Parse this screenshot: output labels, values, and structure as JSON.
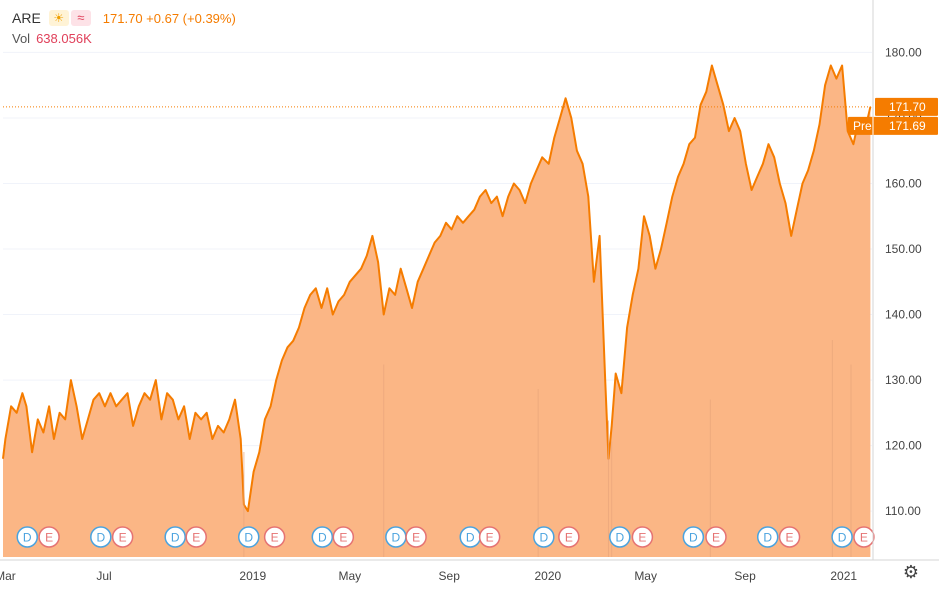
{
  "header": {
    "symbol": "ARE",
    "sun_badge": "☀",
    "wave_badge": "≈",
    "quote": "171.70 +0.67 (+0.39%)",
    "vol_label": "Vol",
    "vol_value": "638.056K"
  },
  "colors": {
    "line": "#f57c00",
    "area": "#fbb27e",
    "volume": "#e8a57a",
    "event_d": "#4aa3df",
    "event_e": "#e57373"
  },
  "settings_icon": "gear-icon",
  "chart_data": {
    "type": "area",
    "ylim": [
      103,
      188
    ],
    "y_ticks": [
      "180.00",
      "170.00",
      "160.00",
      "150.00",
      "140.00",
      "130.00",
      "120.00",
      "110.00"
    ],
    "x_ticks": [
      "Mar",
      "Jul",
      "2019",
      "May",
      "Sep",
      "2020",
      "May",
      "Sep",
      "2021"
    ],
    "last_price": "171.70",
    "pre_label": "Pre",
    "pre_price": "171.69",
    "x_domain": [
      "2018-02-26",
      "2021-02-05"
    ],
    "series": [
      {
        "values": [
          [
            "2018-02-26",
            118
          ],
          [
            "2018-03-01",
            121
          ],
          [
            "2018-03-08",
            126
          ],
          [
            "2018-03-15",
            125
          ],
          [
            "2018-03-22",
            128
          ],
          [
            "2018-03-27",
            126
          ],
          [
            "2018-04-03",
            119
          ],
          [
            "2018-04-10",
            124
          ],
          [
            "2018-04-17",
            122
          ],
          [
            "2018-04-24",
            126
          ],
          [
            "2018-04-30",
            121
          ],
          [
            "2018-05-07",
            125
          ],
          [
            "2018-05-14",
            124
          ],
          [
            "2018-05-21",
            130
          ],
          [
            "2018-05-28",
            126
          ],
          [
            "2018-06-04",
            121
          ],
          [
            "2018-06-11",
            124
          ],
          [
            "2018-06-18",
            127
          ],
          [
            "2018-06-25",
            128
          ],
          [
            "2018-07-02",
            126
          ],
          [
            "2018-07-09",
            128
          ],
          [
            "2018-07-16",
            126
          ],
          [
            "2018-07-23",
            127
          ],
          [
            "2018-07-30",
            128
          ],
          [
            "2018-08-06",
            123
          ],
          [
            "2018-08-13",
            126
          ],
          [
            "2018-08-20",
            128
          ],
          [
            "2018-08-27",
            127
          ],
          [
            "2018-09-03",
            130
          ],
          [
            "2018-09-10",
            124
          ],
          [
            "2018-09-17",
            128
          ],
          [
            "2018-09-24",
            127
          ],
          [
            "2018-10-01",
            124
          ],
          [
            "2018-10-08",
            126
          ],
          [
            "2018-10-15",
            121
          ],
          [
            "2018-10-22",
            125
          ],
          [
            "2018-10-29",
            124
          ],
          [
            "2018-11-05",
            125
          ],
          [
            "2018-11-12",
            121
          ],
          [
            "2018-11-19",
            123
          ],
          [
            "2018-11-26",
            122
          ],
          [
            "2018-12-03",
            124
          ],
          [
            "2018-12-10",
            127
          ],
          [
            "2018-12-17",
            121
          ],
          [
            "2018-12-21",
            111
          ],
          [
            "2018-12-26",
            110
          ],
          [
            "2019-01-02",
            116
          ],
          [
            "2019-01-09",
            119
          ],
          [
            "2019-01-16",
            124
          ],
          [
            "2019-01-23",
            126
          ],
          [
            "2019-01-30",
            130
          ],
          [
            "2019-02-06",
            133
          ],
          [
            "2019-02-13",
            135
          ],
          [
            "2019-02-20",
            136
          ],
          [
            "2019-02-27",
            138
          ],
          [
            "2019-03-06",
            141
          ],
          [
            "2019-03-13",
            143
          ],
          [
            "2019-03-20",
            144
          ],
          [
            "2019-03-27",
            141
          ],
          [
            "2019-04-03",
            144
          ],
          [
            "2019-04-10",
            140
          ],
          [
            "2019-04-17",
            142
          ],
          [
            "2019-04-24",
            143
          ],
          [
            "2019-05-01",
            145
          ],
          [
            "2019-05-08",
            146
          ],
          [
            "2019-05-15",
            147
          ],
          [
            "2019-05-22",
            149
          ],
          [
            "2019-05-29",
            152
          ],
          [
            "2019-06-05",
            148
          ],
          [
            "2019-06-12",
            140
          ],
          [
            "2019-06-19",
            144
          ],
          [
            "2019-06-26",
            143
          ],
          [
            "2019-07-03",
            147
          ],
          [
            "2019-07-10",
            144
          ],
          [
            "2019-07-17",
            141
          ],
          [
            "2019-07-24",
            145
          ],
          [
            "2019-07-31",
            147
          ],
          [
            "2019-08-07",
            149
          ],
          [
            "2019-08-14",
            151
          ],
          [
            "2019-08-21",
            152
          ],
          [
            "2019-08-28",
            154
          ],
          [
            "2019-09-04",
            153
          ],
          [
            "2019-09-11",
            155
          ],
          [
            "2019-09-18",
            154
          ],
          [
            "2019-09-25",
            155
          ],
          [
            "2019-10-02",
            156
          ],
          [
            "2019-10-09",
            158
          ],
          [
            "2019-10-16",
            159
          ],
          [
            "2019-10-23",
            157
          ],
          [
            "2019-10-30",
            158
          ],
          [
            "2019-11-06",
            155
          ],
          [
            "2019-11-13",
            158
          ],
          [
            "2019-11-20",
            160
          ],
          [
            "2019-11-27",
            159
          ],
          [
            "2019-12-04",
            157
          ],
          [
            "2019-12-11",
            160
          ],
          [
            "2019-12-18",
            162
          ],
          [
            "2019-12-25",
            164
          ],
          [
            "2020-01-02",
            163
          ],
          [
            "2020-01-09",
            167
          ],
          [
            "2020-01-16",
            170
          ],
          [
            "2020-01-23",
            173
          ],
          [
            "2020-01-30",
            170
          ],
          [
            "2020-02-06",
            165
          ],
          [
            "2020-02-13",
            163
          ],
          [
            "2020-02-20",
            158
          ],
          [
            "2020-02-27",
            145
          ],
          [
            "2020-03-05",
            152
          ],
          [
            "2020-03-12",
            130
          ],
          [
            "2020-03-16",
            118
          ],
          [
            "2020-03-20",
            123
          ],
          [
            "2020-03-25",
            131
          ],
          [
            "2020-04-01",
            128
          ],
          [
            "2020-04-08",
            138
          ],
          [
            "2020-04-15",
            143
          ],
          [
            "2020-04-22",
            147
          ],
          [
            "2020-04-29",
            155
          ],
          [
            "2020-05-06",
            152
          ],
          [
            "2020-05-13",
            147
          ],
          [
            "2020-05-20",
            150
          ],
          [
            "2020-05-27",
            154
          ],
          [
            "2020-06-03",
            158
          ],
          [
            "2020-06-10",
            161
          ],
          [
            "2020-06-17",
            163
          ],
          [
            "2020-06-24",
            166
          ],
          [
            "2020-07-01",
            167
          ],
          [
            "2020-07-08",
            172
          ],
          [
            "2020-07-15",
            174
          ],
          [
            "2020-07-22",
            178
          ],
          [
            "2020-07-29",
            175
          ],
          [
            "2020-08-05",
            172
          ],
          [
            "2020-08-12",
            168
          ],
          [
            "2020-08-19",
            170
          ],
          [
            "2020-08-26",
            168
          ],
          [
            "2020-09-02",
            163
          ],
          [
            "2020-09-09",
            159
          ],
          [
            "2020-09-16",
            161
          ],
          [
            "2020-09-23",
            163
          ],
          [
            "2020-09-30",
            166
          ],
          [
            "2020-10-07",
            164
          ],
          [
            "2020-10-14",
            160
          ],
          [
            "2020-10-21",
            157
          ],
          [
            "2020-10-28",
            152
          ],
          [
            "2020-11-04",
            156
          ],
          [
            "2020-11-11",
            160
          ],
          [
            "2020-11-18",
            162
          ],
          [
            "2020-11-25",
            165
          ],
          [
            "2020-12-02",
            169
          ],
          [
            "2020-12-09",
            175
          ],
          [
            "2020-12-16",
            178
          ],
          [
            "2020-12-23",
            176
          ],
          [
            "2020-12-30",
            178
          ],
          [
            "2021-01-06",
            168
          ],
          [
            "2021-01-13",
            166
          ],
          [
            "2021-01-20",
            170
          ],
          [
            "2021-01-27",
            168
          ],
          [
            "2021-02-03",
            171.7
          ]
        ]
      }
    ],
    "volume_spikes": [
      [
        "2019-06-12",
        0.55
      ],
      [
        "2019-12-20",
        0.48
      ],
      [
        "2020-03-16",
        0.39
      ],
      [
        "2020-07-20",
        0.45
      ],
      [
        "2020-12-18",
        0.62
      ],
      [
        "2021-01-10",
        0.55
      ],
      [
        "2018-12-21",
        0.3
      ],
      [
        "2020-03-20",
        0.33
      ]
    ],
    "events": [
      [
        "2018-03-28",
        "D"
      ],
      [
        "2018-04-24",
        "E"
      ],
      [
        "2018-06-27",
        "D"
      ],
      [
        "2018-07-24",
        "E"
      ],
      [
        "2018-09-27",
        "D"
      ],
      [
        "2018-10-23",
        "E"
      ],
      [
        "2018-12-27",
        "D"
      ],
      [
        "2019-01-28",
        "E"
      ],
      [
        "2019-03-28",
        "D"
      ],
      [
        "2019-04-23",
        "E"
      ],
      [
        "2019-06-27",
        "D"
      ],
      [
        "2019-07-22",
        "E"
      ],
      [
        "2019-09-27",
        "D"
      ],
      [
        "2019-10-21",
        "E"
      ],
      [
        "2019-12-27",
        "D"
      ],
      [
        "2020-01-27",
        "E"
      ],
      [
        "2020-03-30",
        "D"
      ],
      [
        "2020-04-27",
        "E"
      ],
      [
        "2020-06-29",
        "D"
      ],
      [
        "2020-07-27",
        "E"
      ],
      [
        "2020-09-29",
        "D"
      ],
      [
        "2020-10-26",
        "E"
      ],
      [
        "2020-12-30",
        "D"
      ],
      [
        "2021-01-26",
        "E"
      ]
    ]
  }
}
